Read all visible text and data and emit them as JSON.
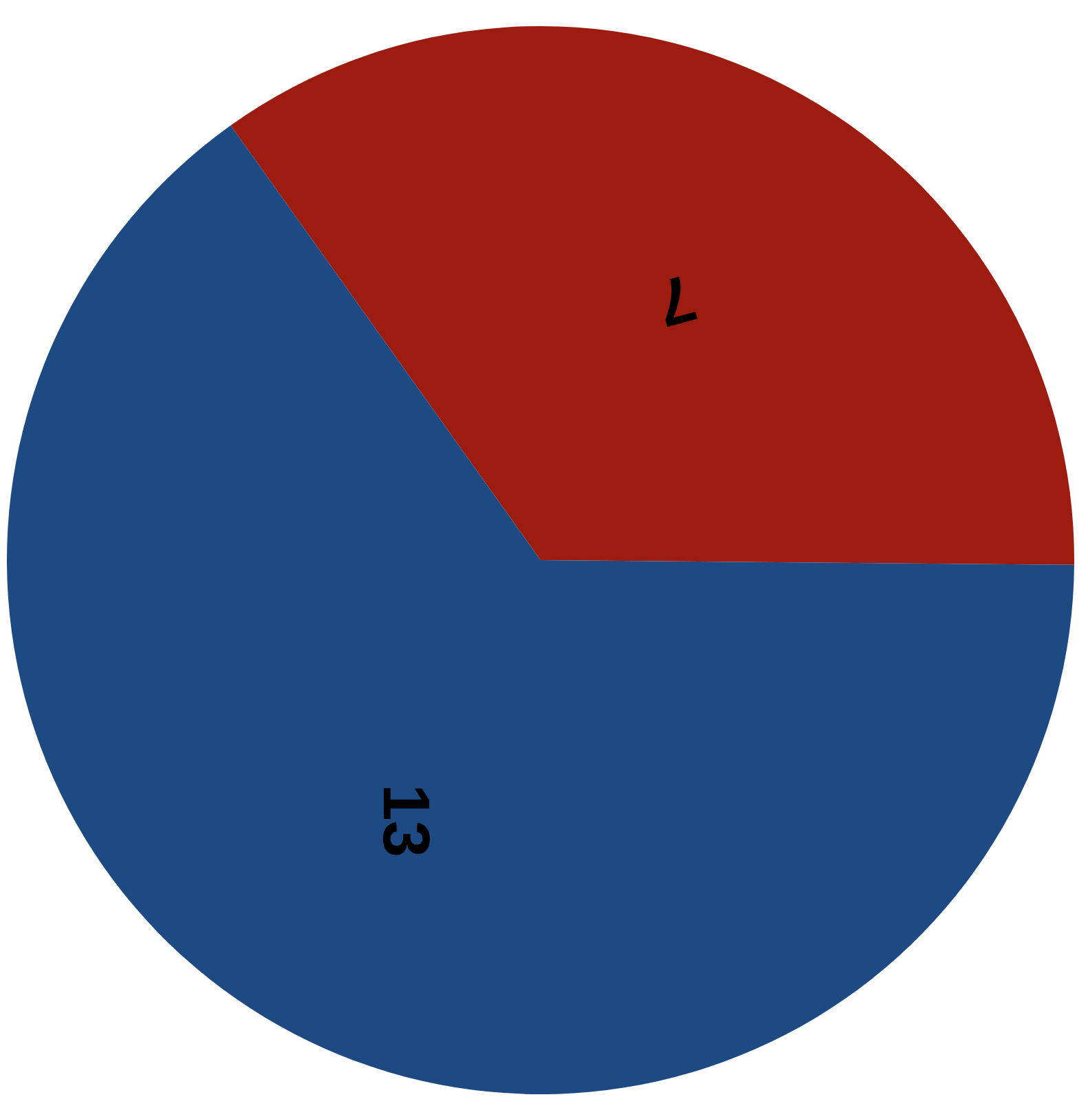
{
  "chart_data": {
    "type": "pie",
    "categories": [
      null,
      null
    ],
    "values": [
      7,
      13
    ],
    "colors": [
      "#9c1c10",
      "#1e4a84"
    ],
    "data_labels": true
  }
}
